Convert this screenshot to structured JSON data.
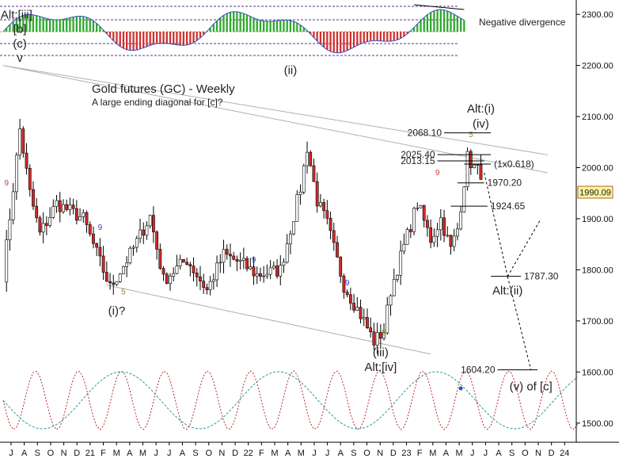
{
  "chart_data": {
    "type": "candlestick",
    "title": "Gold futures (GC) - Weekly",
    "subtitle": "A large ending diagonal for [c]?",
    "instrument": "GC",
    "timeframe": "Weekly",
    "last_price": "1990.09",
    "y_axis": {
      "ticks": [
        "2300.00",
        "2200.00",
        "2100.00",
        "2000.00",
        "1900.00",
        "1800.00",
        "1700.00",
        "1600.00",
        "1500.00"
      ],
      "values": [
        2300,
        2200,
        2100,
        2000,
        1900,
        1800,
        1700,
        1600,
        1500
      ],
      "ylim": [
        1478,
        2325
      ]
    },
    "x_axis": {
      "ticks": [
        "J",
        "A",
        "S",
        "O",
        "N",
        "D",
        "21",
        "F",
        "M",
        "A",
        "M",
        "J",
        "J",
        "A",
        "S",
        "O",
        "N",
        "D",
        "22",
        "F",
        "M",
        "A",
        "M",
        "J",
        "J",
        "A",
        "S",
        "O",
        "N",
        "D",
        "23",
        "F",
        "M",
        "A",
        "M",
        "J",
        "J",
        "A",
        "S",
        "O",
        "N",
        "D",
        "24"
      ]
    },
    "price_swings": [
      {
        "week": 0,
        "price": 1790
      },
      {
        "week": 5,
        "price": 2075
      },
      {
        "week": 8,
        "price": 1950
      },
      {
        "week": 11,
        "price": 1870
      },
      {
        "week": 16,
        "price": 1930
      },
      {
        "week": 24,
        "price": 1900
      },
      {
        "week": 32,
        "price": 1765
      },
      {
        "week": 38,
        "price": 1830
      },
      {
        "week": 44,
        "price": 1905
      },
      {
        "week": 48,
        "price": 1780
      },
      {
        "week": 55,
        "price": 1820
      },
      {
        "week": 61,
        "price": 1760
      },
      {
        "week": 66,
        "price": 1830
      },
      {
        "week": 72,
        "price": 1810
      },
      {
        "week": 76,
        "price": 1790
      },
      {
        "week": 83,
        "price": 1800
      },
      {
        "week": 86,
        "price": 1880
      },
      {
        "week": 89,
        "price": 1960
      },
      {
        "week": 91,
        "price": 2040
      },
      {
        "week": 94,
        "price": 1935
      },
      {
        "week": 97,
        "price": 1890
      },
      {
        "week": 102,
        "price": 1770
      },
      {
        "week": 108,
        "price": 1700
      },
      {
        "week": 111,
        "price": 1660
      },
      {
        "week": 114,
        "price": 1680
      },
      {
        "week": 116,
        "price": 1760
      },
      {
        "week": 119,
        "price": 1825
      },
      {
        "week": 124,
        "price": 1930
      },
      {
        "week": 128,
        "price": 1860
      },
      {
        "week": 131,
        "price": 1900
      },
      {
        "week": 134,
        "price": 1840
      },
      {
        "week": 136,
        "price": 1880
      },
      {
        "week": 139,
        "price": 2020
      },
      {
        "week": 141,
        "price": 2000
      },
      {
        "week": 143,
        "price": 1990
      }
    ],
    "channel_lines": [
      {
        "from": {
          "week": 0,
          "price": 2200
        },
        "to": {
          "week": 163,
          "price": 2025
        }
      },
      {
        "from": {
          "week": 0,
          "price": 2200
        },
        "to": {
          "week": 163,
          "price": 1990
        }
      },
      {
        "from": {
          "week": 31,
          "price": 1770
        },
        "to": {
          "week": 128,
          "price": 1635
        }
      }
    ],
    "price_levels": [
      {
        "label": "2068.10",
        "price": 2068.1
      },
      {
        "label": "2025.40",
        "price": 2025.4
      },
      {
        "label": "2013.15",
        "price": 2013.15
      },
      {
        "label": "(1x0.618)",
        "price": 2007
      },
      {
        "label": "1970.20",
        "price": 1970.2
      },
      {
        "label": "1924.65",
        "price": 1924.65
      },
      {
        "label": "1787.30",
        "price": 1787.3
      },
      {
        "label": "1604.20",
        "price": 1604.2
      }
    ],
    "projection_path": [
      {
        "week": 144,
        "price": 1990
      },
      {
        "week": 151,
        "price": 1787
      },
      {
        "week": 161,
        "price": 1900
      },
      {
        "week": 151,
        "price": 1787
      },
      {
        "week": 158,
        "price": 1604
      }
    ],
    "wave_labels": [
      {
        "text": "Alt:[iii]",
        "week": 4,
        "price": 2292
      },
      {
        "text": "[b]",
        "week": 5,
        "price": 2264
      },
      {
        "text": "(c)",
        "week": 5,
        "price": 2235
      },
      {
        "text": "v",
        "week": 5,
        "price": 2207
      },
      {
        "text": "(ii)",
        "week": 86,
        "price": 2183
      },
      {
        "text": "(i)?",
        "week": 34,
        "price": 1712
      },
      {
        "text": "(iii)",
        "week": 113,
        "price": 1631
      },
      {
        "text": "Alt:[iv]",
        "week": 113,
        "price": 1602
      },
      {
        "text": "Alt:(i)",
        "week": 143,
        "price": 2108
      },
      {
        "text": "(iv)",
        "week": 143,
        "price": 2078
      },
      {
        "text": "Alt:(ii)",
        "week": 151,
        "price": 1752
      },
      {
        "text": "(v) of [c]",
        "week": 158,
        "price": 1564
      }
    ],
    "sequential_counts": [
      {
        "text": "9",
        "week": 1,
        "price": 1965,
        "color": "#d04040"
      },
      {
        "text": "9",
        "week": 29,
        "price": 1878,
        "color": "#3a3ad0"
      },
      {
        "text": "5",
        "week": 36,
        "price": 1752,
        "color": "#a08020"
      },
      {
        "text": "9",
        "week": 75,
        "price": 1815,
        "color": "#3a3ad0"
      },
      {
        "text": "9",
        "week": 103,
        "price": 1770,
        "color": "#3a3ad0"
      },
      {
        "text": "5",
        "week": 114,
        "price": 1672,
        "color": "#a08020"
      },
      {
        "text": "9",
        "week": 130,
        "price": 1985,
        "color": "#d04040"
      },
      {
        "text": "5",
        "week": 140,
        "price": 2060,
        "color": "#a08020"
      }
    ],
    "indicator_panel": {
      "annotation": "Negative divergence",
      "colors": {
        "positive": "#2ea82e",
        "negative": "#d03030",
        "line": "#3050c0",
        "dotted": "#5a3a8a"
      }
    },
    "cycle_panel": {
      "colors": {
        "red": "#c02a2a",
        "teal": "#2a9a9a"
      }
    },
    "colors": {
      "up": "#ffffff",
      "down": "#d42a2a",
      "wick": "#000000",
      "channel": "#b0b0b0",
      "badge_bg": "#f7f3a0",
      "badge_border": "#c06030"
    }
  }
}
